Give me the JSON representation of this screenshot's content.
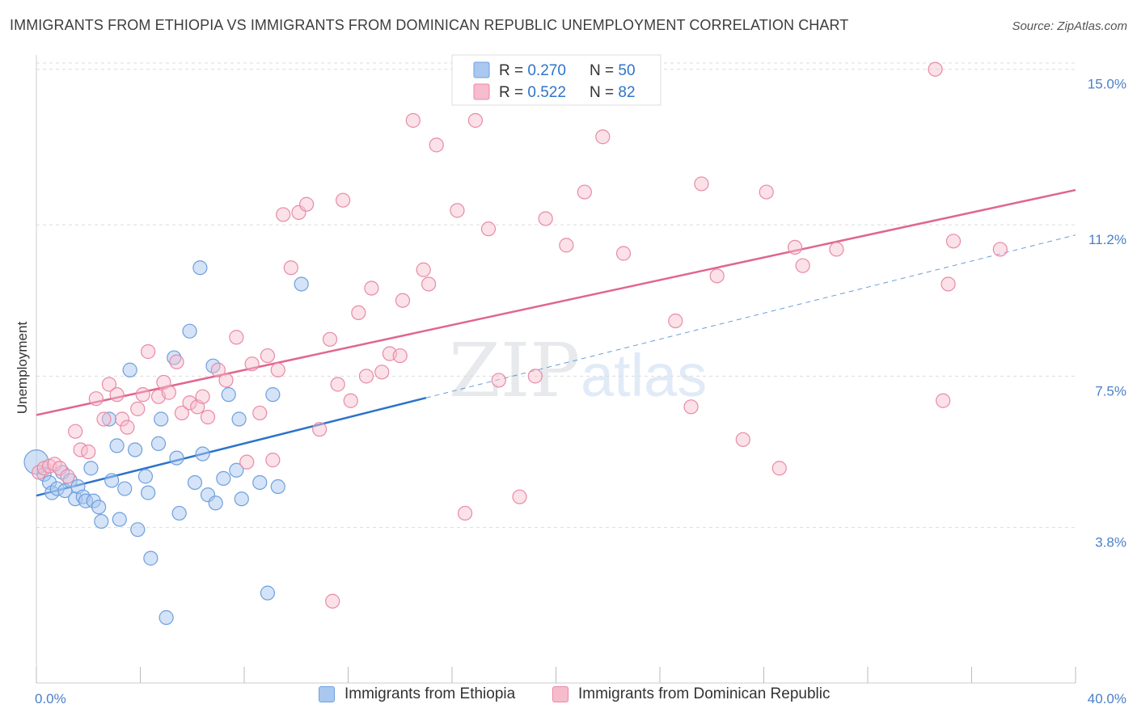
{
  "header": {
    "title": "IMMIGRANTS FROM ETHIOPIA VS IMMIGRANTS FROM DOMINICAN REPUBLIC UNEMPLOYMENT CORRELATION CHART",
    "source": "Source: ZipAtlas.com"
  },
  "colors": {
    "series_a_fill": "#a9c8ef",
    "series_a_stroke": "#6fa0dd",
    "series_a_line": "#2e74c9",
    "series_b_fill": "#f6bccd",
    "series_b_stroke": "#e88aa8",
    "series_b_line": "#e0668f",
    "tick_text": "#4a7fc8"
  },
  "legend_top": {
    "rows": [
      {
        "r_label": "R = ",
        "r_value": "0.270",
        "n_label": "N = ",
        "n_value": "50"
      },
      {
        "r_label": "R = ",
        "r_value": "0.522",
        "n_label": "N = ",
        "n_value": "82"
      }
    ]
  },
  "watermark": {
    "zip": "ZIP",
    "atlas": "atlas"
  },
  "chart_data": {
    "type": "scatter",
    "title": "IMMIGRANTS FROM ETHIOPIA VS IMMIGRANTS FROM DOMINICAN REPUBLIC UNEMPLOYMENT CORRELATION CHART",
    "xlabel": "",
    "ylabel": "Unemployment",
    "xlim": [
      0,
      40
    ],
    "ylim": [
      0,
      15.35
    ],
    "x_tick_labels": {
      "left": "0.0%",
      "right": "40.0%"
    },
    "y_ticks": [
      {
        "value": 3.8,
        "label": "3.8%"
      },
      {
        "value": 7.5,
        "label": "7.5%"
      },
      {
        "value": 11.2,
        "label": "11.2%"
      },
      {
        "value": 15.0,
        "label": "15.0%"
      }
    ],
    "grid": "horizontal dashed",
    "legend_placement": "bottom",
    "series": [
      {
        "name": "Immigrants from Ethiopia",
        "r": 0.27,
        "n": 50,
        "trend": {
          "x0": 0,
          "y0": 4.58,
          "x1": 15,
          "y1": 6.97,
          "dashed_to_x": 40,
          "dashed_to_y": 10.95
        },
        "points": [
          [
            0.0,
            5.4
          ],
          [
            0.3,
            5.1
          ],
          [
            0.5,
            4.9
          ],
          [
            0.6,
            4.65
          ],
          [
            0.8,
            4.75
          ],
          [
            1.0,
            5.15
          ],
          [
            1.1,
            4.7
          ],
          [
            1.3,
            4.95
          ],
          [
            1.5,
            4.5
          ],
          [
            1.6,
            4.8
          ],
          [
            1.8,
            4.55
          ],
          [
            1.9,
            4.45
          ],
          [
            2.1,
            5.25
          ],
          [
            2.2,
            4.45
          ],
          [
            2.4,
            4.3
          ],
          [
            2.5,
            3.95
          ],
          [
            2.8,
            6.45
          ],
          [
            2.9,
            4.95
          ],
          [
            3.1,
            5.8
          ],
          [
            3.2,
            4.0
          ],
          [
            3.4,
            4.75
          ],
          [
            3.6,
            7.65
          ],
          [
            3.8,
            5.7
          ],
          [
            3.9,
            3.75
          ],
          [
            4.2,
            5.05
          ],
          [
            4.3,
            4.65
          ],
          [
            4.4,
            3.05
          ],
          [
            4.7,
            5.85
          ],
          [
            4.8,
            6.45
          ],
          [
            5.0,
            1.6
          ],
          [
            5.3,
            7.95
          ],
          [
            5.4,
            5.5
          ],
          [
            5.5,
            4.15
          ],
          [
            5.9,
            8.6
          ],
          [
            6.1,
            4.9
          ],
          [
            6.3,
            10.15
          ],
          [
            6.4,
            5.6
          ],
          [
            6.6,
            4.6
          ],
          [
            6.8,
            7.75
          ],
          [
            6.9,
            4.4
          ],
          [
            7.2,
            5.0
          ],
          [
            7.4,
            7.05
          ],
          [
            7.7,
            5.2
          ],
          [
            7.8,
            6.45
          ],
          [
            7.9,
            4.5
          ],
          [
            8.6,
            4.9
          ],
          [
            8.9,
            2.2
          ],
          [
            9.1,
            7.05
          ],
          [
            9.3,
            4.8
          ],
          [
            10.2,
            9.75
          ]
        ]
      },
      {
        "name": "Immigrants from Dominican Republic",
        "r": 0.522,
        "n": 82,
        "trend": {
          "x0": 0,
          "y0": 6.55,
          "x1": 40,
          "y1": 12.05
        },
        "points": [
          [
            0.1,
            5.15
          ],
          [
            0.3,
            5.25
          ],
          [
            0.5,
            5.3
          ],
          [
            0.7,
            5.35
          ],
          [
            0.9,
            5.25
          ],
          [
            1.2,
            5.05
          ],
          [
            1.5,
            6.15
          ],
          [
            1.7,
            5.7
          ],
          [
            2.0,
            5.65
          ],
          [
            2.3,
            6.95
          ],
          [
            2.6,
            6.45
          ],
          [
            2.8,
            7.3
          ],
          [
            3.1,
            7.05
          ],
          [
            3.3,
            6.45
          ],
          [
            3.5,
            6.25
          ],
          [
            3.9,
            6.7
          ],
          [
            4.1,
            7.05
          ],
          [
            4.3,
            8.1
          ],
          [
            4.7,
            7.0
          ],
          [
            4.9,
            7.35
          ],
          [
            5.1,
            7.1
          ],
          [
            5.4,
            7.85
          ],
          [
            5.6,
            6.6
          ],
          [
            5.9,
            6.85
          ],
          [
            6.2,
            6.75
          ],
          [
            6.4,
            7.0
          ],
          [
            6.6,
            6.5
          ],
          [
            7.0,
            7.65
          ],
          [
            7.3,
            7.4
          ],
          [
            7.7,
            8.45
          ],
          [
            8.1,
            5.4
          ],
          [
            8.3,
            7.8
          ],
          [
            8.6,
            6.6
          ],
          [
            8.9,
            8.0
          ],
          [
            9.1,
            5.45
          ],
          [
            9.3,
            7.65
          ],
          [
            9.5,
            11.45
          ],
          [
            9.8,
            10.15
          ],
          [
            10.1,
            11.5
          ],
          [
            10.4,
            11.7
          ],
          [
            10.9,
            6.2
          ],
          [
            11.3,
            8.4
          ],
          [
            11.6,
            7.3
          ],
          [
            11.8,
            11.8
          ],
          [
            12.1,
            6.9
          ],
          [
            12.4,
            9.05
          ],
          [
            12.7,
            7.5
          ],
          [
            12.9,
            9.65
          ],
          [
            13.3,
            7.6
          ],
          [
            13.6,
            8.05
          ],
          [
            14.0,
            8.0
          ],
          [
            14.1,
            9.35
          ],
          [
            14.5,
            13.75
          ],
          [
            14.9,
            10.1
          ],
          [
            15.1,
            9.75
          ],
          [
            15.4,
            13.15
          ],
          [
            16.2,
            11.55
          ],
          [
            16.5,
            4.15
          ],
          [
            16.9,
            13.75
          ],
          [
            17.4,
            11.1
          ],
          [
            17.8,
            7.4
          ],
          [
            18.6,
            4.55
          ],
          [
            19.2,
            7.5
          ],
          [
            19.6,
            11.35
          ],
          [
            20.4,
            10.7
          ],
          [
            21.1,
            12.0
          ],
          [
            21.8,
            13.35
          ],
          [
            22.6,
            10.5
          ],
          [
            24.6,
            8.85
          ],
          [
            25.2,
            6.75
          ],
          [
            25.6,
            12.2
          ],
          [
            26.2,
            9.95
          ],
          [
            27.2,
            5.95
          ],
          [
            28.1,
            12.0
          ],
          [
            28.6,
            5.25
          ],
          [
            29.2,
            10.65
          ],
          [
            29.5,
            10.2
          ],
          [
            30.8,
            10.6
          ],
          [
            34.6,
            15.0
          ],
          [
            34.9,
            6.9
          ],
          [
            35.1,
            9.75
          ],
          [
            35.3,
            10.8
          ],
          [
            37.1,
            10.6
          ],
          [
            11.4,
            2.0
          ]
        ]
      }
    ]
  }
}
